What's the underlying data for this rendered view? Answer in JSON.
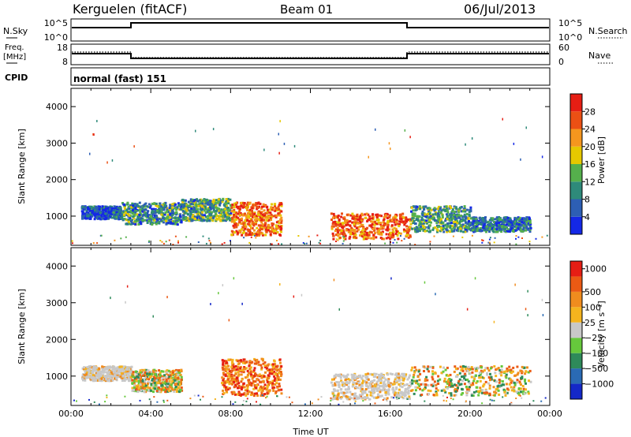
{
  "header": {
    "station": "Kerguelen (fitACF)",
    "beam": "Beam 01",
    "date": "06/Jul/2013"
  },
  "top_panels": {
    "nsky": {
      "label": "N.Sky",
      "ticks": [
        "10^5",
        "10^0"
      ]
    },
    "nsearch": {
      "label": "N.Search",
      "ticks": [
        "10^5",
        "10^0"
      ]
    },
    "freq": {
      "label_line1": "Freq.",
      "label_line2": "[MHz]",
      "ticks": [
        "18",
        "8"
      ]
    },
    "nave": {
      "label": "Nave",
      "ticks": [
        "60",
        "0"
      ]
    },
    "cpid": {
      "label": "CPID",
      "mode": "normal (fast) 151"
    }
  },
  "chart_data": [
    {
      "type": "heatmap",
      "name": "power",
      "ylabel": "Slant Range [km]",
      "yticks": [
        "1000",
        "2000",
        "3000",
        "4000"
      ],
      "ylim": [
        200,
        4500
      ],
      "xlim": [
        0,
        24
      ],
      "colorbar": {
        "label": "Power [dB]",
        "ticks": [
          "4",
          "8",
          "12",
          "16",
          "20",
          "24",
          "28"
        ],
        "colors": [
          "#1428e6",
          "#2d5fb4",
          "#2e8a7a",
          "#55b04c",
          "#e6c800",
          "#f5961e",
          "#eb5014",
          "#e61e14"
        ]
      },
      "regions": [
        {
          "t": [
            0.5,
            2.5
          ],
          "r": [
            950,
            1300
          ],
          "level": 0.15
        },
        {
          "t": [
            2.5,
            5.5
          ],
          "r": [
            800,
            1400
          ],
          "level": 0.3
        },
        {
          "t": [
            5.5,
            8.0
          ],
          "r": [
            900,
            1500
          ],
          "level": 0.35
        },
        {
          "t": [
            8.0,
            10.5
          ],
          "r": [
            500,
            1400
          ],
          "level": 0.75
        },
        {
          "t": [
            13.0,
            17.0
          ],
          "r": [
            400,
            1100
          ],
          "level": 0.8
        },
        {
          "t": [
            17.0,
            20.0
          ],
          "r": [
            600,
            1300
          ],
          "level": 0.35
        },
        {
          "t": [
            20.0,
            23.0
          ],
          "r": [
            600,
            1000
          ],
          "level": 0.25
        }
      ]
    },
    {
      "type": "heatmap",
      "name": "velocity",
      "ylabel": "Slant Range [km]",
      "xlabel": "Time UT",
      "yticks": [
        "1000",
        "2000",
        "3000",
        "4000"
      ],
      "ylim": [
        200,
        4500
      ],
      "xlim": [
        0,
        24
      ],
      "xticks": [
        "00:00",
        "04:00",
        "08:00",
        "12:00",
        "16:00",
        "20:00",
        "00:00"
      ],
      "colorbar": {
        "label": "Velocity [m s⁻¹]",
        "ticks": [
          "1000",
          "500",
          "100",
          "25",
          "−25",
          "−100",
          "−500",
          "−1000"
        ],
        "colors": [
          "#1428c8",
          "#2a6ab4",
          "#2e8a5a",
          "#66c83c",
          "#c8c8c8",
          "#f5b41e",
          "#f08c1e",
          "#eb5a14",
          "#e61e14"
        ]
      },
      "regions": [
        {
          "t": [
            0.5,
            3.0
          ],
          "r": [
            900,
            1300
          ],
          "kind": "ground-scatter"
        },
        {
          "t": [
            3.0,
            5.5
          ],
          "r": [
            600,
            1200
          ],
          "kind": "mixed"
        },
        {
          "t": [
            7.5,
            10.5
          ],
          "r": [
            500,
            1500
          ],
          "kind": "receding"
        },
        {
          "t": [
            13.0,
            17.0
          ],
          "r": [
            400,
            1100
          ],
          "kind": "ground-scatter"
        },
        {
          "t": [
            17.0,
            23.0
          ],
          "r": [
            500,
            1300
          ],
          "kind": "mixed"
        }
      ]
    }
  ]
}
